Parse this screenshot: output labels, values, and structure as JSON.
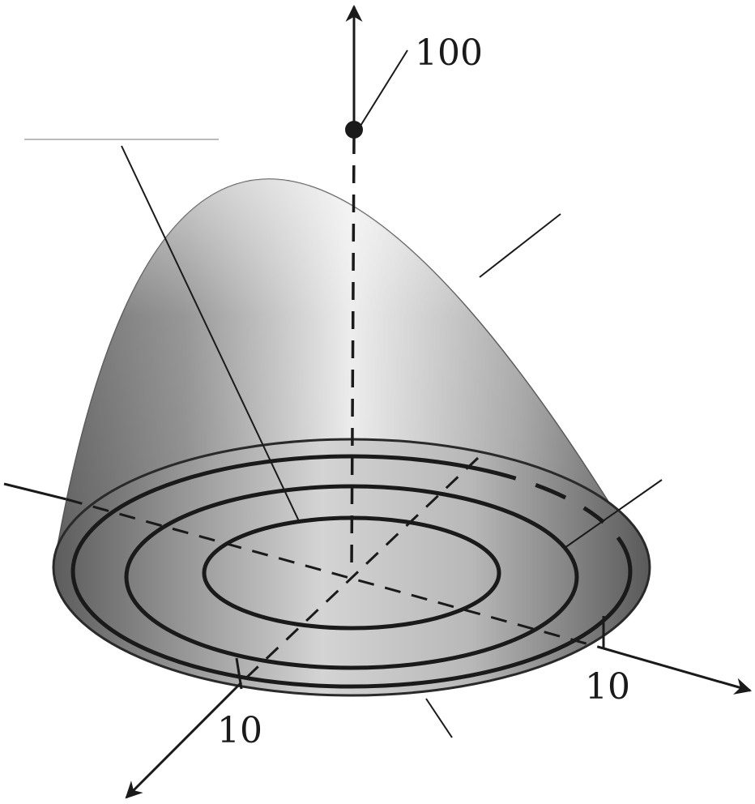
{
  "labels": {
    "z_max": "100",
    "x_tick": "10",
    "y_tick": "10"
  },
  "colors": {
    "ink": "#1a1a1a",
    "surface_light": "#e6e6e6",
    "surface_dark": "#6e6e6e"
  }
}
